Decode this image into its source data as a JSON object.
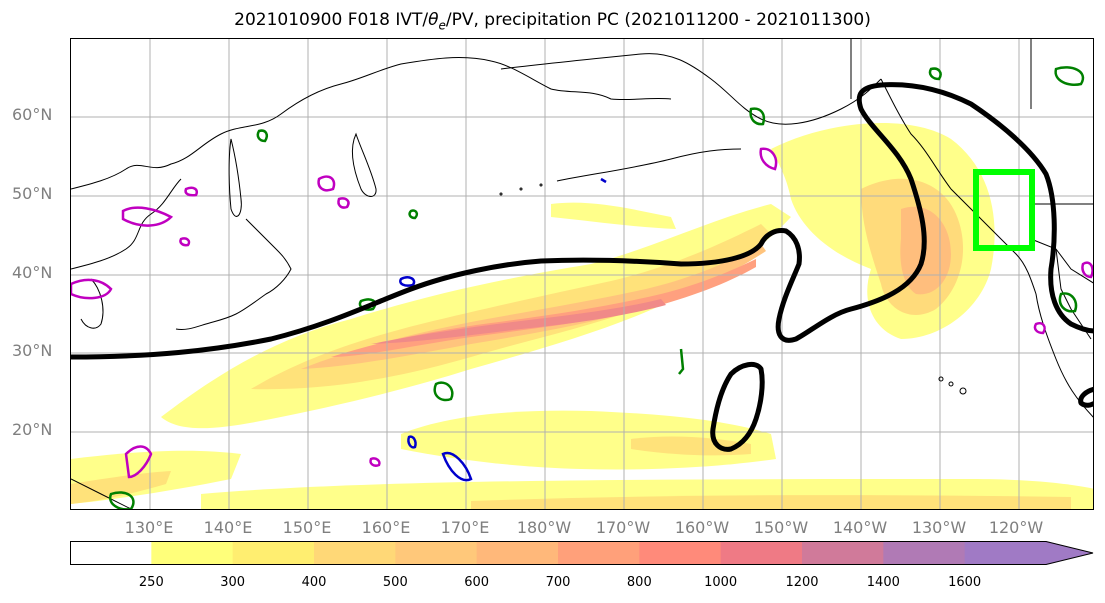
{
  "title": {
    "prefix": "2021010900 F018 IVT/",
    "theta": "θ",
    "theta_sub": "e",
    "suffix": "/PV, precipitation PC (2021011200 - 2021011300)"
  },
  "lat_labels": [
    "60°N",
    "50°N",
    "40°N",
    "30°N",
    "20°N"
  ],
  "lon_labels": [
    "130°E",
    "140°E",
    "150°E",
    "160°E",
    "170°E",
    "180°W",
    "170°W",
    "160°W",
    "150°W",
    "140°W",
    "130°W",
    "120°W"
  ],
  "colorbar": {
    "ticks": [
      "250",
      "300",
      "400",
      "500",
      "600",
      "700",
      "800",
      "1000",
      "1200",
      "1400",
      "1600"
    ],
    "colors": [
      "#ffffff",
      "#ffff7a",
      "#ffee70",
      "#ffd877",
      "#ffc87a",
      "#ffb87a",
      "#ffa07a",
      "#ff8a7a",
      "#ef7a85",
      "#d07a9a",
      "#b07ab5",
      "#a07ac5"
    ]
  },
  "colors": {
    "pc_contour": "#000000",
    "box": "#00ff00",
    "pv_neg": "#008000",
    "pv_pos": "#c000c0",
    "theta_e": "#0000cc"
  }
}
